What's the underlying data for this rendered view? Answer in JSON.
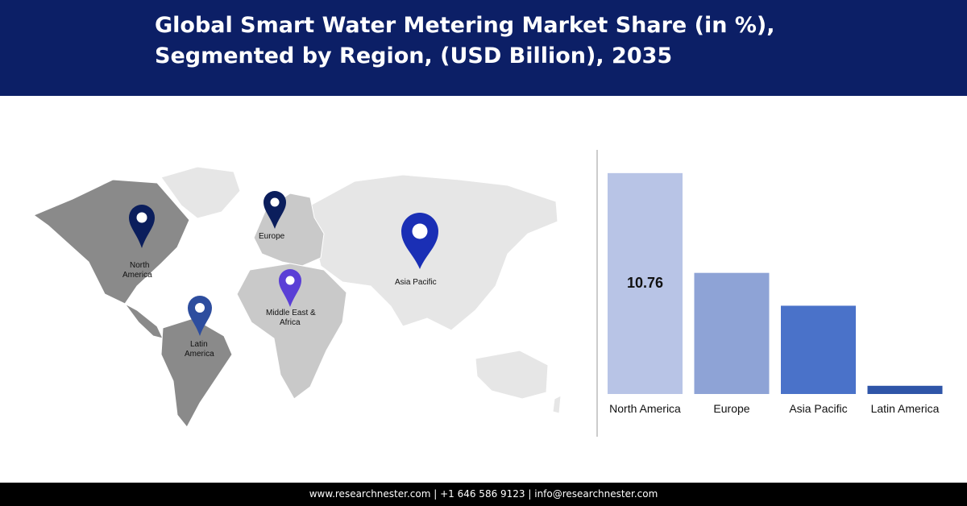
{
  "header": {
    "title_line1": "Global Smart Water Metering Market Share (in %),",
    "title_line2": "Segmented by Region, (USD Billion), 2035"
  },
  "map": {
    "pins": [
      {
        "name": "North America",
        "label_lines": [
          "North",
          "America"
        ],
        "color": "#0b1e5c"
      },
      {
        "name": "Europe",
        "label_lines": [
          "Europe"
        ],
        "color": "#0b1e5c"
      },
      {
        "name": "Asia Pacific",
        "label_lines": [
          "Asia Pacific"
        ],
        "color": "#1a2fb5"
      },
      {
        "name": "Middle East & Africa",
        "label_lines": [
          "Middle East &",
          "Africa"
        ],
        "color": "#5a3fd6"
      },
      {
        "name": "Latin America",
        "label_lines": [
          "Latin",
          "America"
        ],
        "color": "#2d4d9e"
      }
    ]
  },
  "chart_data": {
    "type": "bar",
    "categories": [
      "North America",
      "Europe",
      "Asia Pacific",
      "Latin America"
    ],
    "values": [
      10.76,
      5.9,
      4.3,
      0.4
    ],
    "data_labels": [
      "10.76",
      "",
      "",
      ""
    ],
    "colors": [
      "#b8c4e6",
      "#8ea3d6",
      "#4a72c9",
      "#2f55a8"
    ],
    "ylim": [
      0,
      11.5
    ],
    "title": "",
    "xlabel": "",
    "ylabel": "",
    "grid": false
  },
  "footer": {
    "text": "www.researchnester.com  | +1 646 586 9123 | info@researchnester.com"
  }
}
